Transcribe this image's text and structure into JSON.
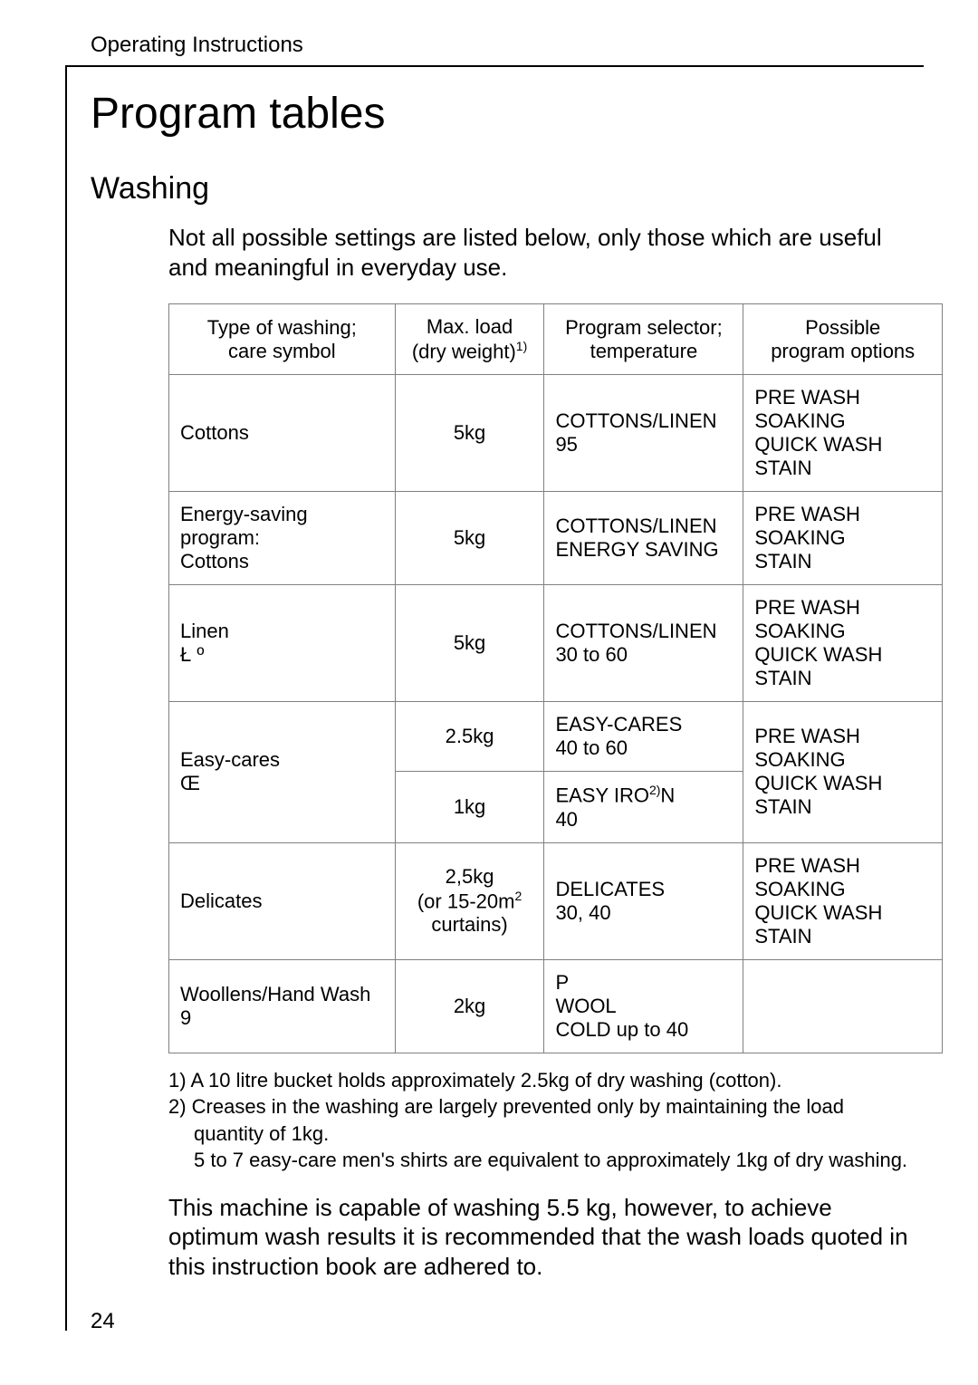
{
  "header": {
    "text": "Operating Instructions"
  },
  "title": "Program tables",
  "subtitle": "Washing",
  "intro": "Not all possible settings are listed below, only those which are useful and meaningful in everyday use.",
  "table": {
    "columns": [
      {
        "label_line1": "Type of washing;",
        "label_line2": "care symbol"
      },
      {
        "label_line1": "Max. load",
        "label_line2_prefix": "(dry weight)",
        "label_line2_sup": "1)"
      },
      {
        "label_line1": "Program selector;",
        "label_line2": "temperature"
      },
      {
        "label_line1": "Possible",
        "label_line2": "program options"
      }
    ],
    "rows": [
      {
        "type": "Cottons",
        "load": "5kg",
        "selector_l1": "COTTONS/LINEN",
        "selector_l2": "95",
        "options_l1": "PRE WASH",
        "options_l2": "SOAKING",
        "options_l3": "QUICK WASH",
        "options_l4": "STAIN"
      },
      {
        "type_l1": "Energy-saving program:",
        "type_l2": "Cottons",
        "load": "5kg",
        "selector_l1": "COTTONS/LINEN",
        "selector_l2": "ENERGY SAVING",
        "options_l1": "PRE WASH",
        "options_l2": "SOAKING",
        "options_l3": "STAIN"
      },
      {
        "type_l1": "Linen",
        "type_l2": "Ł  º",
        "load": "5kg",
        "selector_l1": "COTTONS/LINEN",
        "selector_l2": "30 to 60",
        "options_l1": "PRE WASH",
        "options_l2": "SOAKING",
        "options_l3": "QUICK WASH",
        "options_l4": "STAIN"
      },
      {
        "type_l1": "Easy-cares",
        "type_l2": "Œ",
        "sub1": {
          "load": "2.5kg",
          "selector_l1": "EASY-CARES",
          "selector_l2": "40 to 60"
        },
        "sub2": {
          "load": "1kg",
          "selector_l1_prefix": "EASY IRO",
          "selector_l1_sup": "2)",
          "selector_l1_suffix": "N",
          "selector_l2": "40"
        },
        "options_l1": "PRE WASH",
        "options_l2": "SOAKING",
        "options_l3": "QUICK WASH",
        "options_l4": "STAIN"
      },
      {
        "type": "Delicates",
        "load_l1": "2,5kg",
        "load_l2_prefix": "(or 15-20m",
        "load_l2_sup": "2",
        "load_l3": "curtains)",
        "selector_l1": "DELICATES",
        "selector_l2": "30, 40",
        "options_l1": "PRE WASH",
        "options_l2": "SOAKING",
        "options_l3": "QUICK WASH",
        "options_l4": "STAIN"
      },
      {
        "type_l1": "Woollens/Hand Wash",
        "type_l2": "9",
        "load": "2kg",
        "selector_l1": "P",
        "selector_l2": "WOOL",
        "selector_l3": "COLD up to 40",
        "options": ""
      }
    ]
  },
  "notes": {
    "n1": "1) A 10 litre bucket holds approximately 2.5kg of dry washing (cotton).",
    "n2": "2) Creases in the washing are largely prevented only by maintaining the load",
    "n2b": "quantity of 1kg.",
    "n2c": "5 to 7 easy-care men's shirts are equivalent to approximately 1kg of dry washing."
  },
  "closing": "This machine is capable of washing 5.5 kg, however, to achieve optimum wash results it is recommended that the wash loads quoted in this instruction book are adhered to.",
  "pagenum": "24",
  "colors": {
    "text": "#000000",
    "bg": "#ffffff",
    "border": "#808080"
  }
}
